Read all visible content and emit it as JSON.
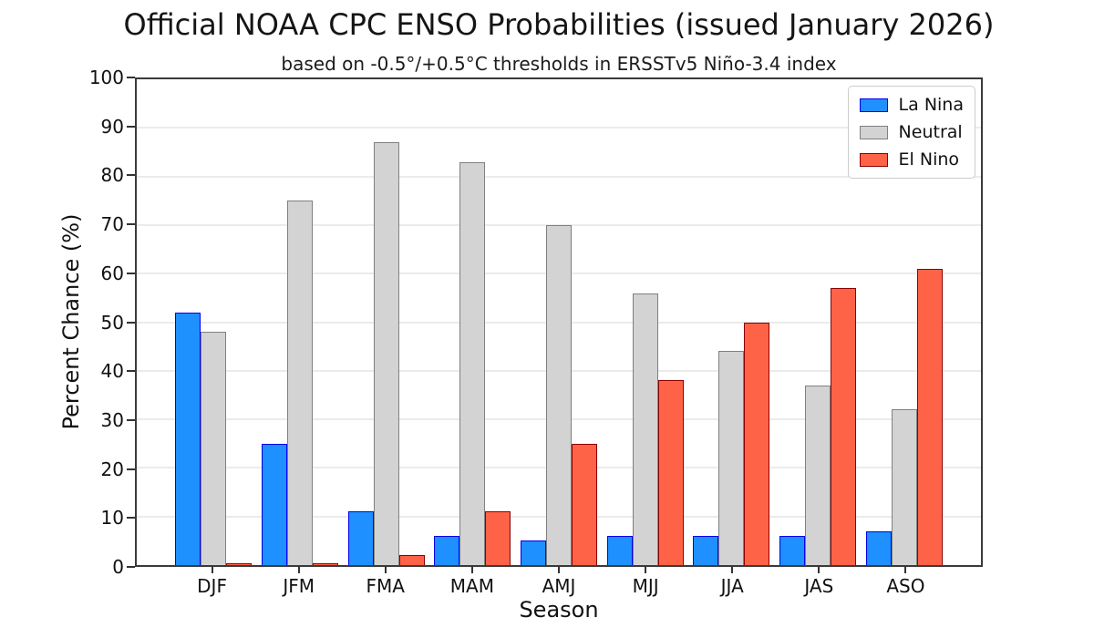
{
  "chart_data": {
    "type": "bar",
    "title": "Official NOAA CPC ENSO Probabilities (issued January 2026)",
    "subtitle": "based on -0.5°/+0.5°C thresholds in ERSSTv5 Niño-3.4 index",
    "xlabel": "Season",
    "ylabel": "Percent Chance (%)",
    "categories": [
      "DJF",
      "JFM",
      "FMA",
      "MAM",
      "AMJ",
      "MJJ",
      "JJA",
      "JAS",
      "ASO"
    ],
    "series": [
      {
        "name": "La Nina",
        "color": "#1e90ff",
        "edge_color": "#0000ee",
        "values": [
          52,
          25,
          11,
          6,
          5,
          6,
          6,
          6,
          7
        ]
      },
      {
        "name": "Neutral",
        "color": "#d3d3d3",
        "edge_color": "#808080",
        "values": [
          48,
          75,
          87,
          83,
          70,
          56,
          44,
          37,
          32
        ]
      },
      {
        "name": "El Nino",
        "color": "#ff6347",
        "edge_color": "#8b0000",
        "values": [
          0,
          0,
          2,
          11,
          25,
          38,
          50,
          57,
          61
        ]
      }
    ],
    "ylim": [
      0,
      100
    ],
    "ytick_step": 10,
    "grid": "horizontal",
    "legend_position": "top-right",
    "spine_color": "#3a3a3a",
    "grid_color": "#ebebeb"
  }
}
